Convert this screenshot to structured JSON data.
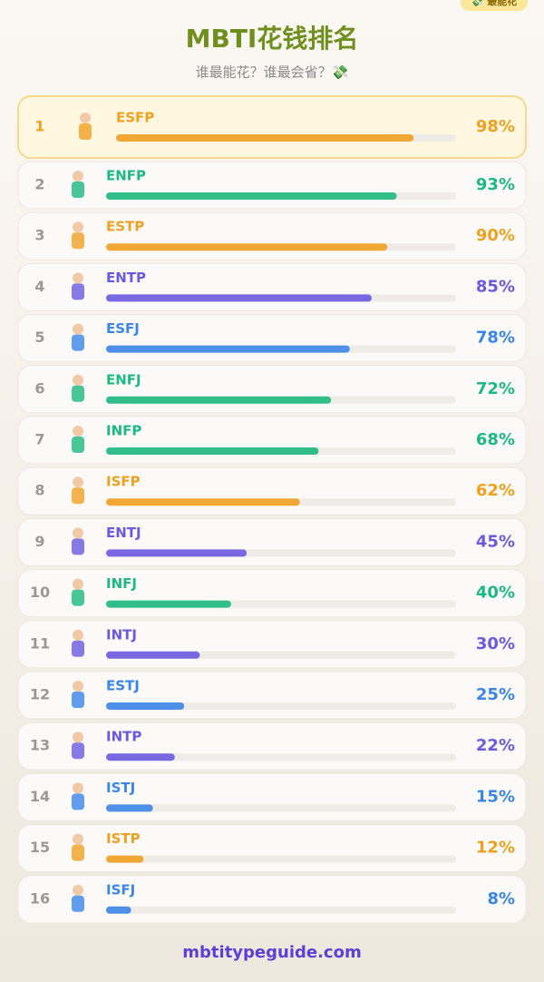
{
  "badge": "💸 最能花",
  "chart_data": {
    "type": "ranking",
    "title": "MBTI花钱排名",
    "subtitle": "谁最能花？谁最会省？💸",
    "ranks": [
      1,
      2,
      3,
      4,
      5,
      6,
      7,
      8,
      9,
      10,
      11,
      12,
      13,
      14,
      15,
      16
    ],
    "categories": [
      "ESFP",
      "ENFP",
      "ESTP",
      "ENTP",
      "ESFJ",
      "ENFJ",
      "INFP",
      "ISFP",
      "ENTJ",
      "INFJ",
      "INTJ",
      "ESTJ",
      "INTP",
      "ISTJ",
      "ISTP",
      "ISFJ"
    ],
    "values": [
      98,
      93,
      90,
      85,
      78,
      72,
      68,
      62,
      45,
      40,
      30,
      25,
      22,
      15,
      12,
      8
    ],
    "value_labels": [
      "98%",
      "93%",
      "90%",
      "85%",
      "78%",
      "72%",
      "68%",
      "62%",
      "45%",
      "40%",
      "30%",
      "25%",
      "22%",
      "15%",
      "12%",
      "8%"
    ],
    "colors": [
      "#f0a020",
      "#1db980",
      "#f0a020",
      "#6a5ae0",
      "#3a86e8",
      "#1db980",
      "#1db980",
      "#f0a020",
      "#6a5ae0",
      "#1db980",
      "#6a5ae0",
      "#3a86e8",
      "#6a5ae0",
      "#3a86e8",
      "#f0a020",
      "#3a86e8"
    ],
    "xlim": [
      0,
      112
    ]
  },
  "footer": "mbtitypeguide.com"
}
